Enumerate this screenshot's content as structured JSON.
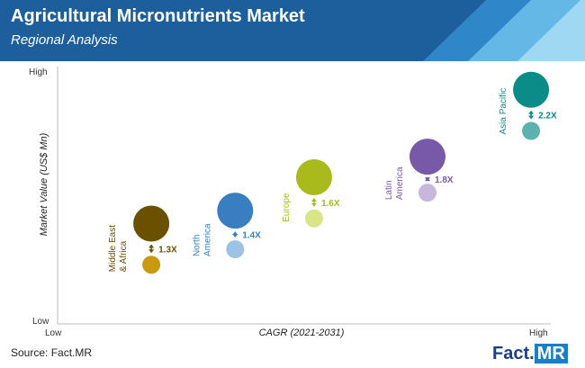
{
  "header": {
    "title": "Agricultural Micronutrients Market",
    "subtitle": "Regional Analysis"
  },
  "chart_data": {
    "type": "bubble",
    "title": "",
    "xlabel": "CAGR (2021-2031)",
    "ylabel": "Market Value (US$ Mn)",
    "x_low_label": "Low",
    "x_high_label": "High",
    "y_low_label": "Low",
    "y_high_label": "High",
    "series": [
      {
        "name_lines": [
          "Middle East",
          "& Africa"
        ],
        "multiplier": "1.3X",
        "color": "#6b5000",
        "small_color": "#c99a10",
        "big": {
          "x": 0.19,
          "y": 0.39
        },
        "small": {
          "x": 0.19,
          "y": 0.23
        }
      },
      {
        "name_lines": [
          "North",
          "America"
        ],
        "multiplier": "1.4X",
        "color": "#3a7ec2",
        "small_color": "#9cc2e6",
        "big": {
          "x": 0.36,
          "y": 0.44
        },
        "small": {
          "x": 0.36,
          "y": 0.29
        }
      },
      {
        "name_lines": [
          "Europe"
        ],
        "multiplier": "1.6X",
        "color": "#a9ba1c",
        "small_color": "#d9e587",
        "big": {
          "x": 0.52,
          "y": 0.57
        },
        "small": {
          "x": 0.52,
          "y": 0.41
        }
      },
      {
        "name_lines": [
          "Latin",
          "America"
        ],
        "multiplier": "1.8X",
        "color": "#7858a8",
        "small_color": "#c7b6dd",
        "big": {
          "x": 0.75,
          "y": 0.65
        },
        "small": {
          "x": 0.75,
          "y": 0.51
        }
      },
      {
        "name_lines": [
          "Asia Pacific"
        ],
        "multiplier": "2.2X",
        "color": "#0b8c88",
        "small_color": "#5db2b0",
        "big": {
          "x": 0.96,
          "y": 0.91
        },
        "small": {
          "x": 0.96,
          "y": 0.75
        }
      }
    ],
    "grid": false,
    "legend": "none"
  },
  "footer": {
    "source": "Source: Fact.MR",
    "logo_a": "Fact.",
    "logo_b": "MR"
  }
}
